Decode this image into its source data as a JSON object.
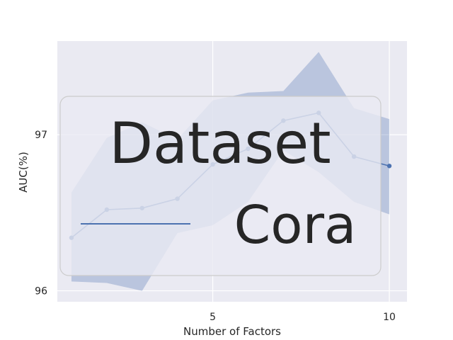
{
  "chart_data": {
    "type": "line",
    "xlabel": "Number of Factors",
    "ylabel": "AUC(%)",
    "xlim": [
      0.6,
      10.5
    ],
    "ylim": [
      95.93,
      97.6
    ],
    "xticks": [
      5,
      10
    ],
    "xtick_labels": [
      "5",
      "10"
    ],
    "yticks": [
      96,
      97
    ],
    "ytick_labels": [
      "96",
      "97"
    ],
    "grid": true,
    "legend": {
      "title": "Dataset",
      "placement": "center",
      "entries": [
        "Cora"
      ]
    },
    "series": [
      {
        "name": "Cora",
        "color": "#4c72b0",
        "x": [
          1,
          2,
          3,
          4,
          5,
          6,
          7,
          8,
          9,
          10
        ],
        "y": [
          96.34,
          96.52,
          96.53,
          96.59,
          96.81,
          96.91,
          97.09,
          97.14,
          96.86,
          96.8
        ],
        "band_upper": [
          96.63,
          96.98,
          97.08,
          96.97,
          97.22,
          97.27,
          97.28,
          97.53,
          97.17,
          97.1
        ],
        "band_lower": [
          96.06,
          96.05,
          96.0,
          96.37,
          96.42,
          96.57,
          96.9,
          96.76,
          96.57,
          96.49
        ]
      }
    ]
  }
}
